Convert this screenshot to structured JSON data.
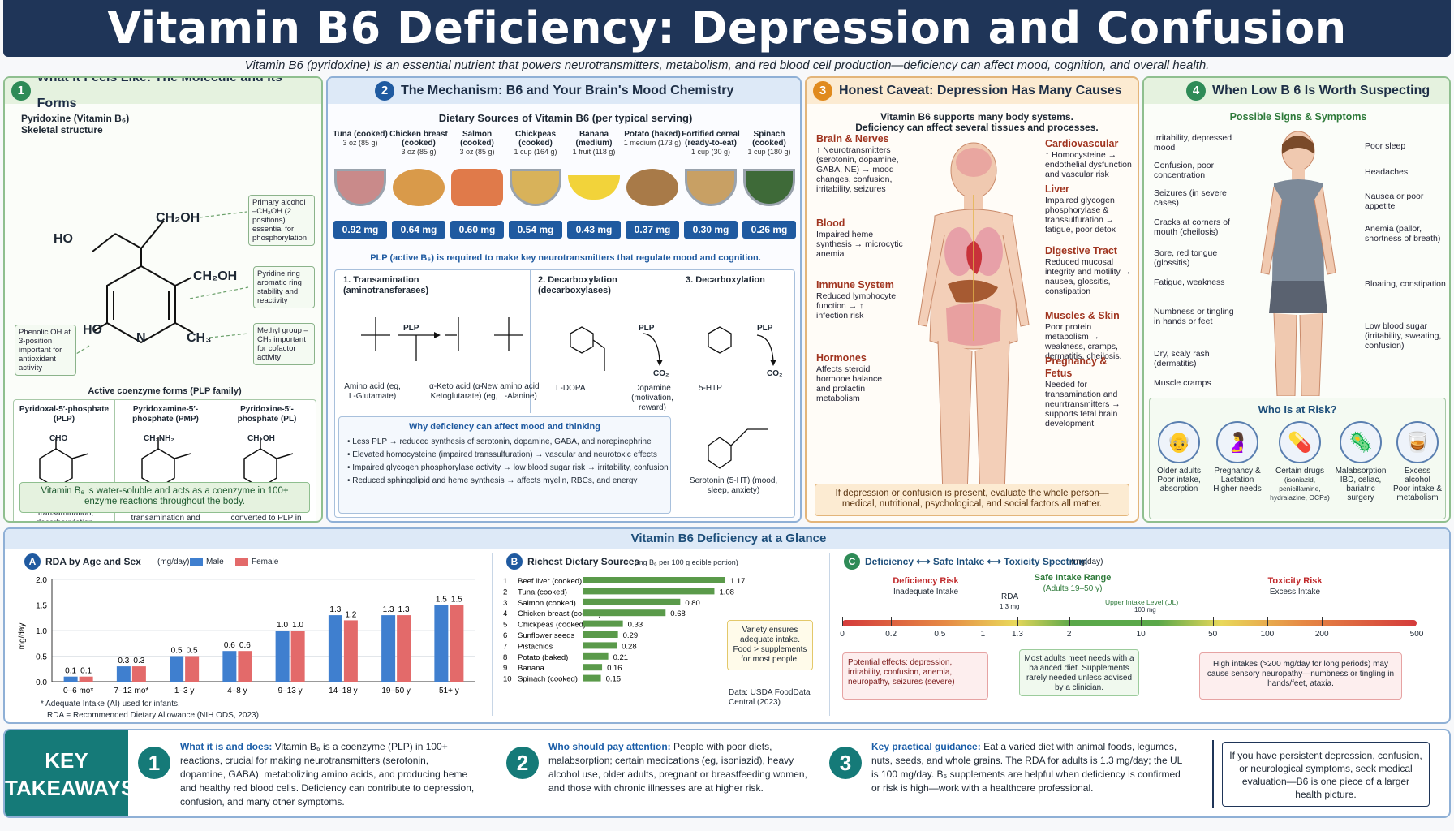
{
  "title": "Vitamin B6 Deficiency: Depression and Confusion",
  "subtitle": "Vitamin B6 (pyridoxine) is an essential nutrient that powers neurotransmitters, metabolism, and red blood cell production—deficiency can affect mood, cognition, and overall health.",
  "panel1": {
    "num": "1",
    "title": "What It Feels Like: The Molecule and Its Forms",
    "mol_name": "Pyridoxine (Vitamin B₆)",
    "mol_sub": "Skeletal structure",
    "atoms": {
      "ch2oh_top": "CH₂OH",
      "ho_top": "HO",
      "ch2oh_mid": "CH₂OH",
      "ho_ring": "HO",
      "n": "N",
      "ch3": "CH₃"
    },
    "callouts": [
      "Primary alcohol –CH₂OH (2 positions) essential for phosphorylation",
      "Pyridine ring aromatic ring stability and reactivity",
      "Methyl group –CH₃ important for cofactor activity",
      "Phenolic OH at 3-position important for antioxidant activity"
    ],
    "forms_title": "Active coenzyme forms (PLP family)",
    "forms": [
      {
        "name": "Pyridoxal-5′-phosphate (PLP)",
        "group": "CHO",
        "desc": "Key coenzyme for transamination, decarboxylation, racemization"
      },
      {
        "name": "Pyridoxamine-5′-phosphate (PMP)",
        "group": "CH₂NH₂",
        "desc": "Important for transamination and amination"
      },
      {
        "name": "Pyridoxine-5′-phosphate (PL)",
        "group": "CH₂OH",
        "desc": "Circulating storage form; converted to PLP in tissues"
      }
    ],
    "note": "Vitamin B₆ is water-soluble and acts as a coenzyme in 100+ enzyme reactions throughout the body."
  },
  "panel2": {
    "num": "2",
    "title": "The Mechanism: B6 and Your Brain's Mood Chemistry",
    "sources_title": "Dietary Sources of Vitamin B6 (per typical serving)",
    "foods": [
      {
        "name": "Tuna (cooked)",
        "serving": "3 oz (85 g)",
        "amount": "0.92 mg",
        "color": "#c98a8a"
      },
      {
        "name": "Chicken breast (cooked)",
        "serving": "3 oz (85 g)",
        "amount": "0.64 mg",
        "color": "#d99a4a"
      },
      {
        "name": "Salmon (cooked)",
        "serving": "3 oz (85 g)",
        "amount": "0.60 mg",
        "color": "#e07a4a"
      },
      {
        "name": "Chickpeas (cooked)",
        "serving": "1 cup (164 g)",
        "amount": "0.54 mg",
        "color": "#d8b25a"
      },
      {
        "name": "Banana (medium)",
        "serving": "1 fruit (118 g)",
        "amount": "0.43 mg",
        "color": "#f2d33a"
      },
      {
        "name": "Potato (baked)",
        "serving": "1 medium (173 g)",
        "amount": "0.37 mg",
        "color": "#a87a48"
      },
      {
        "name": "Fortified cereal (ready-to-eat)",
        "serving": "1 cup (30 g)",
        "amount": "0.30 mg",
        "color": "#c8a064"
      },
      {
        "name": "Spinach (cooked)",
        "serving": "1 cup (180 g)",
        "amount": "0.26 mg",
        "color": "#3e6a38"
      }
    ],
    "plp_line": "PLP (active B₆) is required to make key neurotransmitters that regulate mood and cognition.",
    "r1_title": "1. Transamination (aminotransferases)",
    "r1_labels": {
      "aa": "Amino acid (eg, L-Glutamate)",
      "ka": "α-Keto acid (α-Ketoglutarate)",
      "na": "New amino acid (eg, L-Alanine)",
      "plp": "PLP"
    },
    "r2_title": "2. Decarboxylation (decarboxylases)",
    "r2_labels": {
      "sub": "L-DOPA",
      "prod": "Dopamine (motivation, reward)",
      "plp": "PLP",
      "co2": "CO₂"
    },
    "r3_title": "3. Decarboxylation",
    "r3_labels": {
      "sub": "5-HTP",
      "prod": "Serotonin (5-HT) (mood, sleep, anxiety)",
      "plp": "PLP",
      "co2": "CO₂"
    },
    "why_title": "Why deficiency can affect mood and thinking",
    "why_items": [
      "• Less PLP → reduced synthesis of serotonin, dopamine, GABA, and norepinephrine",
      "• Elevated homocysteine (impaired transsulfuration) → vascular and neurotoxic effects",
      "• Impaired glycogen phosphorylase activity → low blood sugar risk → irritability, confusion",
      "• Reduced sphingolipid and heme synthesis → affects myelin, RBCs, and energy"
    ]
  },
  "panel3": {
    "num": "3",
    "title": "Honest Caveat: Depression Has Many Causes",
    "intro": "Vitamin B6 supports many body systems. Deficiency can affect several tissues and processes.",
    "systems": [
      {
        "name": "Brain & Nerves",
        "desc": "↑ Neurotransmitters (serotonin, dopamine, GABA, NE) → mood changes, confusion, irritability, seizures"
      },
      {
        "name": "Blood",
        "desc": "Impaired heme synthesis → microcytic anemia"
      },
      {
        "name": "Immune System",
        "desc": "Reduced lymphocyte function → ↑ infection risk"
      },
      {
        "name": "Hormones",
        "desc": "Affects steroid hormone balance and prolactin metabolism"
      },
      {
        "name": "Cardiovascular",
        "desc": "↑ Homocysteine → endothelial dysfunction and vascular risk"
      },
      {
        "name": "Liver",
        "desc": "Impaired glycogen phosphorylase & transsulfuration → fatigue, poor detox"
      },
      {
        "name": "Digestive Tract",
        "desc": "Reduced mucosal integrity and motility → nausea, glossitis, constipation"
      },
      {
        "name": "Muscles & Skin",
        "desc": "Poor protein metabolism → weakness, cramps, dermatitis, cheilosis."
      },
      {
        "name": "Pregnancy & Fetus",
        "desc": "Needed for transamination and neurrtransmitters → supports fetal brain development"
      }
    ],
    "footer": "If depression or confusion is present, evaluate the whole person—medical, nutritional, psychological, and social factors all matter."
  },
  "panel4": {
    "num": "4",
    "title": "When Low B 6 Is Worth Suspecting",
    "signs_title": "Possible Signs & Symptoms",
    "left_signs": [
      "Irritability, depressed mood",
      "Confusion, poor concentration",
      "Seizures (in severe cases)",
      "Cracks at corners of mouth (cheilosis)",
      "Sore, red tongue (glossitis)",
      "Fatigue, weakness",
      "Numbness or tingling in hands or feet",
      "Dry, scaly rash (dermatitis)",
      "Muscle cramps"
    ],
    "right_signs": [
      "Poor sleep",
      "Headaches",
      "Nausea or poor appetite",
      "Anemia (pallor, shortness of breath)",
      "Bloating, constipation",
      "Low blood sugar (irritability, sweating, confusion)"
    ],
    "risk_title": "Who Is at Risk?",
    "risks": [
      {
        "name": "Older adults",
        "desc": "Poor intake, absorption",
        "icon": "👴"
      },
      {
        "name": "Pregnancy & Lactation",
        "desc": "Higher needs",
        "icon": "🤰"
      },
      {
        "name": "Certain drugs",
        "desc": "(isoniazid, penicillamine, hydralazine, OCPs)",
        "icon": "💊"
      },
      {
        "name": "Malabsorption",
        "desc": "IBD, celiac, bariatric surgery",
        "icon": "🦠"
      },
      {
        "name": "Excess alcohol",
        "desc": "Poor intake & metabolism",
        "icon": "🥃"
      }
    ]
  },
  "glance": {
    "title": "Vitamin B6 Deficiency at a Glance",
    "sectA": {
      "letter": "A",
      "title": "RDA by Age and Sex",
      "unit": "(mg/day)",
      "legend_male": "Male",
      "legend_female": "Female",
      "foot1": "* Adequate Intake (AI) used for infants.",
      "foot2": "RDA = Recommended Dietary Allowance (NIH ODS, 2023)"
    },
    "sectB": {
      "letter": "B",
      "title": "Richest Dietary Sources",
      "unit": "(mg B₆ per 100 g edible portion)",
      "note": "Variety ensures adequate intake. Food > supplements for most people.",
      "data_src": "Data: USDA FoodData Central (2023)"
    },
    "sectC": {
      "letter": "C",
      "title": "Deficiency ⟷ Safe Intake ⟷ Toxicity Spectrum",
      "unit": "(mg/day)",
      "def_title": "Deficiency Risk",
      "def_sub": "Inadequate Intake",
      "safe_title": "Safe Intake Range",
      "safe_sub": "(Adults 19–50 y)",
      "tox_title": "Toxicity Risk",
      "tox_sub": "Excess Intake",
      "rda_label": "RDA",
      "rda_val": "1.3 mg",
      "ul_label": "Upper Intake Level (UL)",
      "ul_val": "100 mg",
      "ticks": [
        "0",
        "0.2",
        "0.5",
        "1",
        "1.3",
        "2",
        "10",
        "50",
        "100",
        "200",
        "500"
      ],
      "box_def": "Potential effects: depression, irritability, confusion, anemia, neuropathy, seizures (severe)",
      "box_safe": "Most adults meet needs with a balanced diet. Supplements rarely needed unless advised by a clinician.",
      "box_tox": "High intakes (>200 mg/day for long periods) may cause sensory neuropathy—numbness or tingling in hands/feet, ataxia."
    }
  },
  "chart_data": [
    {
      "type": "bar",
      "title": "RDA by Age and Sex",
      "ylabel": "mg/day",
      "ylim": [
        0,
        2.0
      ],
      "yticks": [
        "0.0",
        "0.5",
        "1.0",
        "1.5",
        "2.0"
      ],
      "categories": [
        "0–6 mo*",
        "7–12 mo*",
        "1–3 y",
        "4–8 y",
        "9–13 y",
        "14–18 y",
        "19–50 y",
        "51+ y"
      ],
      "series": [
        {
          "name": "Male",
          "values": [
            0.1,
            0.3,
            0.5,
            0.6,
            1.0,
            1.3,
            1.3,
            1.5
          ],
          "labels": [
            "0.1",
            "0.3",
            "0.5",
            "0.6",
            "1.0",
            "1.3",
            "1.3",
            "1.5"
          ],
          "color": "#3f7fcf"
        },
        {
          "name": "Female",
          "values": [
            0.1,
            0.3,
            0.5,
            0.6,
            1.0,
            1.2,
            1.3,
            1.5
          ],
          "labels": [
            "0.1",
            "0.3",
            "0.5",
            "0.6",
            "1.0",
            "1.2",
            "1.3",
            "1.5"
          ],
          "color": "#e36a6a"
        }
      ]
    },
    {
      "type": "bar",
      "orientation": "horizontal",
      "title": "Richest Dietary Sources",
      "categories": [
        "Beef liver (cooked)",
        "Tuna (cooked)",
        "Salmon (cooked)",
        "Chicken breast (cooked)",
        "Chickpeas (cooked)",
        "Sunflower seeds",
        "Pistachios",
        "Potato (baked)",
        "Banana",
        "Spinach (cooked)"
      ],
      "ranks": [
        "1",
        "2",
        "3",
        "4",
        "5",
        "6",
        "7",
        "8",
        "9",
        "10"
      ],
      "values": [
        1.17,
        1.08,
        0.8,
        0.68,
        0.33,
        0.29,
        0.28,
        0.21,
        0.16,
        0.15
      ],
      "labels": [
        "1.17",
        "1.08",
        "0.80",
        "0.68",
        "0.33",
        "0.29",
        "0.28",
        "0.21",
        "0.16",
        "0.15"
      ],
      "color": "#5a9a4a"
    }
  ],
  "takeaways": {
    "label1": "KEY",
    "label2": "TAKEAWAYS",
    "items": [
      {
        "num": "1",
        "head": "What it is and does:",
        "text": "Vitamin B₆ is a coenzyme (PLP) in 100+ reactions, crucial for making neurotransmitters (serotonin, dopamine, GABA), metabolizing amino acids, and producing heme and healthy red blood cells. Deficiency can contribute to depression, confusion, and many other symptoms."
      },
      {
        "num": "2",
        "head": "Who should pay attention:",
        "text": "People with poor diets, malabsorption; certain medications (eg, isoniazid), heavy alcohol use, older adults, pregnant or breastfeeding women, and those with chronic illnesses are at higher risk."
      },
      {
        "num": "3",
        "head": "Key practical guidance:",
        "text": "Eat a varied diet with animal foods, legumes, nuts, seeds, and whole grains. The RDA for adults is 1.3 mg/day; the UL is 100 mg/day. B₆ supplements are helpful when deficiency is confirmed or risk is high—work with a healthcare professional."
      }
    ],
    "final_note": "If you have persistent depression, confusion, or neurological symptoms, seek medical evaluation—B6 is one piece of a larger health picture."
  },
  "colors": {
    "navy": "#1f3558",
    "green": "#2e8b57",
    "blue": "#1f5aa0",
    "orange": "#e08a1e",
    "teal": "#157a78"
  }
}
